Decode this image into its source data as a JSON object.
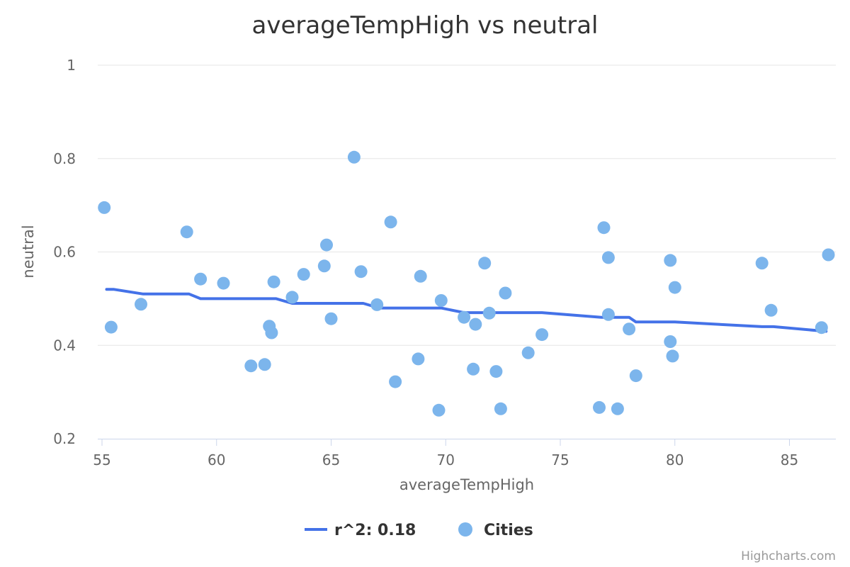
{
  "chart_data": {
    "type": "scatter",
    "title": "averageTempHigh vs neutral",
    "xlabel": "averageTempHigh",
    "ylabel": "neutral",
    "xlim": [
      55,
      87
    ],
    "ylim": [
      0.2,
      1
    ],
    "x_ticks": [
      55,
      60,
      65,
      70,
      75,
      80,
      85
    ],
    "x_tick_labels": [
      "55",
      "60",
      "65",
      "70",
      "75",
      "80",
      "85"
    ],
    "y_ticks": [
      0.2,
      0.4,
      0.6,
      0.8,
      1
    ],
    "y_tick_labels": [
      "0.2",
      "0.4",
      "0.6",
      "0.8",
      "1"
    ],
    "grid": true,
    "legend_position": "bottom-center",
    "series": [
      {
        "name": "r^2: 0.18",
        "type": "line",
        "color": "#4472e8",
        "points": [
          [
            55.2,
            0.52
          ],
          [
            55.5,
            0.52
          ],
          [
            56.8,
            0.51
          ],
          [
            58.8,
            0.51
          ],
          [
            59.3,
            0.5
          ],
          [
            62.6,
            0.5
          ],
          [
            63.3,
            0.49
          ],
          [
            66.4,
            0.49
          ],
          [
            67.1,
            0.48
          ],
          [
            69.8,
            0.48
          ],
          [
            70.8,
            0.47
          ],
          [
            74.2,
            0.47
          ],
          [
            76.8,
            0.46
          ],
          [
            78.0,
            0.46
          ],
          [
            78.3,
            0.45
          ],
          [
            80.0,
            0.45
          ],
          [
            83.8,
            0.44
          ],
          [
            84.3,
            0.44
          ],
          [
            86.6,
            0.43
          ]
        ]
      },
      {
        "name": "Cities",
        "type": "scatter",
        "color": "#7cb5ec",
        "points": [
          [
            55.1,
            0.695
          ],
          [
            55.4,
            0.439
          ],
          [
            56.7,
            0.488
          ],
          [
            58.7,
            0.643
          ],
          [
            59.3,
            0.542
          ],
          [
            60.3,
            0.533
          ],
          [
            61.5,
            0.356
          ],
          [
            62.1,
            0.359
          ],
          [
            62.3,
            0.441
          ],
          [
            62.4,
            0.427
          ],
          [
            62.5,
            0.536
          ],
          [
            63.3,
            0.503
          ],
          [
            63.8,
            0.552
          ],
          [
            64.7,
            0.57
          ],
          [
            64.8,
            0.615
          ],
          [
            65.0,
            0.457
          ],
          [
            66.0,
            0.803
          ],
          [
            66.3,
            0.558
          ],
          [
            67.0,
            0.487
          ],
          [
            67.6,
            0.664
          ],
          [
            67.8,
            0.322
          ],
          [
            68.8,
            0.371
          ],
          [
            68.9,
            0.548
          ],
          [
            69.7,
            0.261
          ],
          [
            69.8,
            0.496
          ],
          [
            70.8,
            0.46
          ],
          [
            71.2,
            0.349
          ],
          [
            71.3,
            0.445
          ],
          [
            71.7,
            0.576
          ],
          [
            71.9,
            0.469
          ],
          [
            72.2,
            0.344
          ],
          [
            72.4,
            0.264
          ],
          [
            72.6,
            0.512
          ],
          [
            73.6,
            0.384
          ],
          [
            74.2,
            0.423
          ],
          [
            76.7,
            0.267
          ],
          [
            76.9,
            0.652
          ],
          [
            77.1,
            0.466
          ],
          [
            77.1,
            0.588
          ],
          [
            77.5,
            0.264
          ],
          [
            78.0,
            0.435
          ],
          [
            78.3,
            0.335
          ],
          [
            79.8,
            0.582
          ],
          [
            79.8,
            0.408
          ],
          [
            79.9,
            0.377
          ],
          [
            80.0,
            0.524
          ],
          [
            83.8,
            0.576
          ],
          [
            84.2,
            0.475
          ],
          [
            86.4,
            0.438
          ],
          [
            86.7,
            0.594
          ]
        ]
      }
    ]
  },
  "credits": "Highcharts.com"
}
